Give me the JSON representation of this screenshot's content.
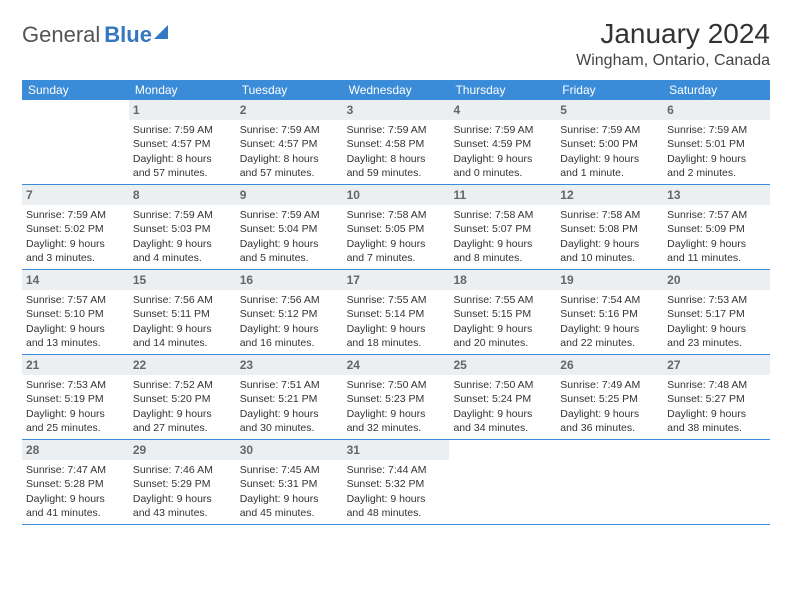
{
  "brand": {
    "part1": "General",
    "part2": "Blue"
  },
  "title": "January 2024",
  "location": "Wingham, Ontario, Canada",
  "dayNames": [
    "Sunday",
    "Monday",
    "Tuesday",
    "Wednesday",
    "Thursday",
    "Friday",
    "Saturday"
  ],
  "colors": {
    "headerBg": "#3a8bd8",
    "dayNumBg": "#eceff1",
    "brand": "#3478c0"
  },
  "weeks": [
    [
      {
        "n": ""
      },
      {
        "n": "1",
        "sunrise": "Sunrise: 7:59 AM",
        "sunset": "Sunset: 4:57 PM",
        "daylight": "Daylight: 8 hours and 57 minutes."
      },
      {
        "n": "2",
        "sunrise": "Sunrise: 7:59 AM",
        "sunset": "Sunset: 4:57 PM",
        "daylight": "Daylight: 8 hours and 57 minutes."
      },
      {
        "n": "3",
        "sunrise": "Sunrise: 7:59 AM",
        "sunset": "Sunset: 4:58 PM",
        "daylight": "Daylight: 8 hours and 59 minutes."
      },
      {
        "n": "4",
        "sunrise": "Sunrise: 7:59 AM",
        "sunset": "Sunset: 4:59 PM",
        "daylight": "Daylight: 9 hours and 0 minutes."
      },
      {
        "n": "5",
        "sunrise": "Sunrise: 7:59 AM",
        "sunset": "Sunset: 5:00 PM",
        "daylight": "Daylight: 9 hours and 1 minute."
      },
      {
        "n": "6",
        "sunrise": "Sunrise: 7:59 AM",
        "sunset": "Sunset: 5:01 PM",
        "daylight": "Daylight: 9 hours and 2 minutes."
      }
    ],
    [
      {
        "n": "7",
        "sunrise": "Sunrise: 7:59 AM",
        "sunset": "Sunset: 5:02 PM",
        "daylight": "Daylight: 9 hours and 3 minutes."
      },
      {
        "n": "8",
        "sunrise": "Sunrise: 7:59 AM",
        "sunset": "Sunset: 5:03 PM",
        "daylight": "Daylight: 9 hours and 4 minutes."
      },
      {
        "n": "9",
        "sunrise": "Sunrise: 7:59 AM",
        "sunset": "Sunset: 5:04 PM",
        "daylight": "Daylight: 9 hours and 5 minutes."
      },
      {
        "n": "10",
        "sunrise": "Sunrise: 7:58 AM",
        "sunset": "Sunset: 5:05 PM",
        "daylight": "Daylight: 9 hours and 7 minutes."
      },
      {
        "n": "11",
        "sunrise": "Sunrise: 7:58 AM",
        "sunset": "Sunset: 5:07 PM",
        "daylight": "Daylight: 9 hours and 8 minutes."
      },
      {
        "n": "12",
        "sunrise": "Sunrise: 7:58 AM",
        "sunset": "Sunset: 5:08 PM",
        "daylight": "Daylight: 9 hours and 10 minutes."
      },
      {
        "n": "13",
        "sunrise": "Sunrise: 7:57 AM",
        "sunset": "Sunset: 5:09 PM",
        "daylight": "Daylight: 9 hours and 11 minutes."
      }
    ],
    [
      {
        "n": "14",
        "sunrise": "Sunrise: 7:57 AM",
        "sunset": "Sunset: 5:10 PM",
        "daylight": "Daylight: 9 hours and 13 minutes."
      },
      {
        "n": "15",
        "sunrise": "Sunrise: 7:56 AM",
        "sunset": "Sunset: 5:11 PM",
        "daylight": "Daylight: 9 hours and 14 minutes."
      },
      {
        "n": "16",
        "sunrise": "Sunrise: 7:56 AM",
        "sunset": "Sunset: 5:12 PM",
        "daylight": "Daylight: 9 hours and 16 minutes."
      },
      {
        "n": "17",
        "sunrise": "Sunrise: 7:55 AM",
        "sunset": "Sunset: 5:14 PM",
        "daylight": "Daylight: 9 hours and 18 minutes."
      },
      {
        "n": "18",
        "sunrise": "Sunrise: 7:55 AM",
        "sunset": "Sunset: 5:15 PM",
        "daylight": "Daylight: 9 hours and 20 minutes."
      },
      {
        "n": "19",
        "sunrise": "Sunrise: 7:54 AM",
        "sunset": "Sunset: 5:16 PM",
        "daylight": "Daylight: 9 hours and 22 minutes."
      },
      {
        "n": "20",
        "sunrise": "Sunrise: 7:53 AM",
        "sunset": "Sunset: 5:17 PM",
        "daylight": "Daylight: 9 hours and 23 minutes."
      }
    ],
    [
      {
        "n": "21",
        "sunrise": "Sunrise: 7:53 AM",
        "sunset": "Sunset: 5:19 PM",
        "daylight": "Daylight: 9 hours and 25 minutes."
      },
      {
        "n": "22",
        "sunrise": "Sunrise: 7:52 AM",
        "sunset": "Sunset: 5:20 PM",
        "daylight": "Daylight: 9 hours and 27 minutes."
      },
      {
        "n": "23",
        "sunrise": "Sunrise: 7:51 AM",
        "sunset": "Sunset: 5:21 PM",
        "daylight": "Daylight: 9 hours and 30 minutes."
      },
      {
        "n": "24",
        "sunrise": "Sunrise: 7:50 AM",
        "sunset": "Sunset: 5:23 PM",
        "daylight": "Daylight: 9 hours and 32 minutes."
      },
      {
        "n": "25",
        "sunrise": "Sunrise: 7:50 AM",
        "sunset": "Sunset: 5:24 PM",
        "daylight": "Daylight: 9 hours and 34 minutes."
      },
      {
        "n": "26",
        "sunrise": "Sunrise: 7:49 AM",
        "sunset": "Sunset: 5:25 PM",
        "daylight": "Daylight: 9 hours and 36 minutes."
      },
      {
        "n": "27",
        "sunrise": "Sunrise: 7:48 AM",
        "sunset": "Sunset: 5:27 PM",
        "daylight": "Daylight: 9 hours and 38 minutes."
      }
    ],
    [
      {
        "n": "28",
        "sunrise": "Sunrise: 7:47 AM",
        "sunset": "Sunset: 5:28 PM",
        "daylight": "Daylight: 9 hours and 41 minutes."
      },
      {
        "n": "29",
        "sunrise": "Sunrise: 7:46 AM",
        "sunset": "Sunset: 5:29 PM",
        "daylight": "Daylight: 9 hours and 43 minutes."
      },
      {
        "n": "30",
        "sunrise": "Sunrise: 7:45 AM",
        "sunset": "Sunset: 5:31 PM",
        "daylight": "Daylight: 9 hours and 45 minutes."
      },
      {
        "n": "31",
        "sunrise": "Sunrise: 7:44 AM",
        "sunset": "Sunset: 5:32 PM",
        "daylight": "Daylight: 9 hours and 48 minutes."
      },
      {
        "n": ""
      },
      {
        "n": ""
      },
      {
        "n": ""
      }
    ]
  ]
}
